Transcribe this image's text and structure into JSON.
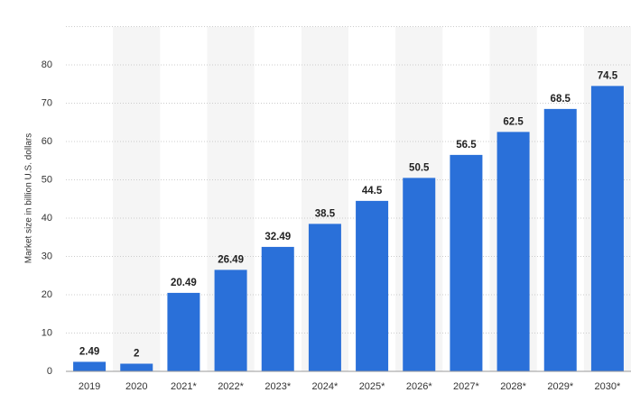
{
  "chart_data": {
    "type": "bar",
    "y_label": "Market size in billion U.S. dollars",
    "categories": [
      "2019",
      "2020",
      "2021*",
      "2022*",
      "2023*",
      "2024*",
      "2025*",
      "2026*",
      "2027*",
      "2028*",
      "2029*",
      "2030*"
    ],
    "values": [
      2.49,
      2,
      20.49,
      26.49,
      32.49,
      38.5,
      44.5,
      50.5,
      56.5,
      62.5,
      68.5,
      74.5
    ],
    "color": "#2a70d9",
    "ylim": [
      0,
      90
    ],
    "yticks": [
      0,
      10,
      20,
      30,
      40,
      50,
      60,
      70,
      80
    ],
    "grid": true
  }
}
